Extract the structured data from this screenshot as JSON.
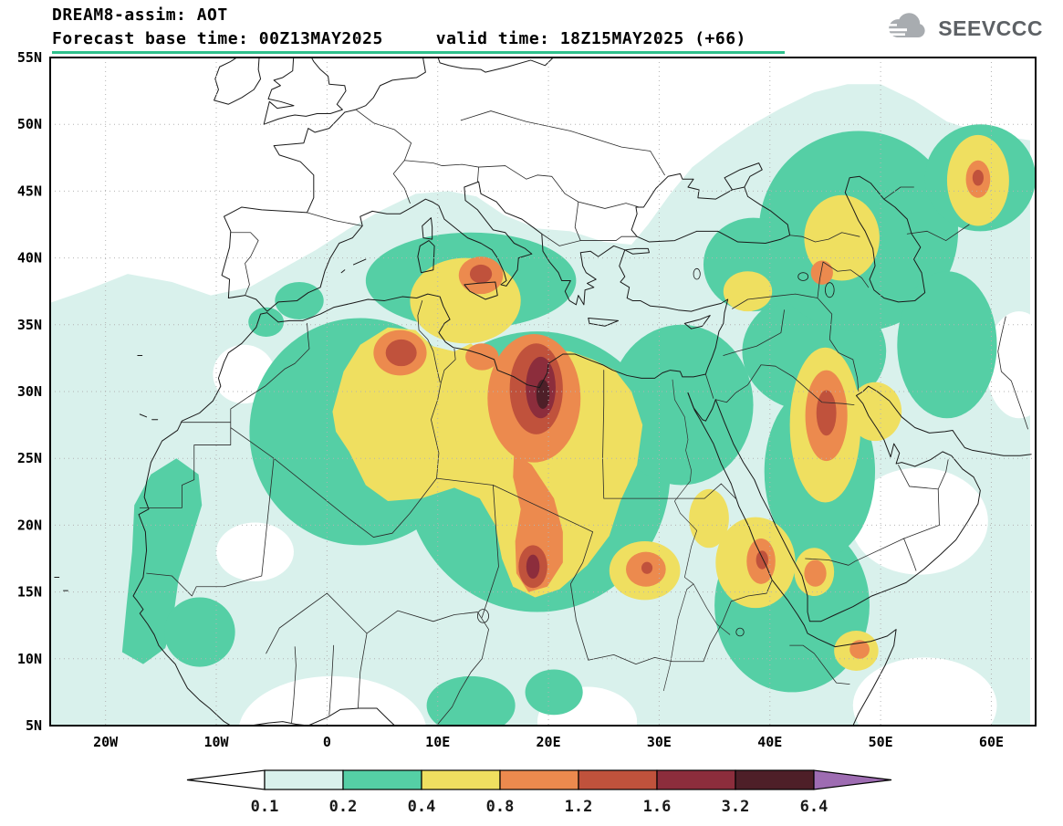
{
  "header": {
    "title": "DREAM8-assim: AOT",
    "forecast_base": "Forecast base time: 00Z13MAY2025",
    "valid_time": "valid time: 18Z15MAY2025 (+66)"
  },
  "logo": {
    "text": "SEEVCCC",
    "icon": "cloud-icon"
  },
  "map": {
    "lat_ticks": [
      {
        "label": "55N",
        "value": 55
      },
      {
        "label": "50N",
        "value": 50
      },
      {
        "label": "45N",
        "value": 45
      },
      {
        "label": "40N",
        "value": 40
      },
      {
        "label": "35N",
        "value": 35
      },
      {
        "label": "30N",
        "value": 30
      },
      {
        "label": "25N",
        "value": 25
      },
      {
        "label": "20N",
        "value": 20
      },
      {
        "label": "15N",
        "value": 15
      },
      {
        "label": "10N",
        "value": 10
      },
      {
        "label": "5N",
        "value": 5
      }
    ],
    "lon_ticks": [
      {
        "label": "20W",
        "value": -20
      },
      {
        "label": "10W",
        "value": -10
      },
      {
        "label": "0",
        "value": 0
      },
      {
        "label": "10E",
        "value": 10
      },
      {
        "label": "20E",
        "value": 20
      },
      {
        "label": "30E",
        "value": 30
      },
      {
        "label": "40E",
        "value": 40
      },
      {
        "label": "50E",
        "value": 50
      },
      {
        "label": "60E",
        "value": 60
      }
    ]
  },
  "colorbar": {
    "boundary_labels": [
      "0.1",
      "0.2",
      "0.4",
      "0.8",
      "1.2",
      "1.6",
      "3.2",
      "6.4"
    ],
    "cell_colors": [
      "#d9f1ec",
      "#55cfa5",
      "#efdf60",
      "#ec8a4e",
      "#c0523c",
      "#8c2d3c",
      "#4e1f28"
    ],
    "left_arrow_color": "#ffffff",
    "right_arrow_color": "#9e6cb2"
  },
  "chart_data": {
    "type": "heatmap",
    "subtype": "filled-contour-geographic-map",
    "model": "DREAM8-assim",
    "variable": "AOT",
    "title": "DREAM8-assim: AOT",
    "forecast_base_time": "00Z13MAY2025",
    "valid_time": "18Z15MAY2025",
    "forecast_hour": "+66",
    "lat_range": [
      5,
      55
    ],
    "lon_range": [
      -25,
      64
    ],
    "grid": true,
    "legend_position": "bottom",
    "contour_levels": [
      0.1,
      0.2,
      0.4,
      0.8,
      1.2,
      1.6,
      3.2,
      6.4
    ],
    "level_colors": {
      "0": "#ffffff",
      "0.1": "#d9f1ec",
      "0.2": "#55cfa5",
      "0.4": "#efdf60",
      "0.8": "#ec8a4e",
      "1.2": "#c0523c",
      "1.6": "#8c2d3c",
      "3.2": "#4e1f28",
      "6.4": "#9e6cb2"
    },
    "features": [
      {
        "region": "central Libya (absolute maximum)",
        "lon": 19.5,
        "lat": 30,
        "max_level": "3.2-6.4"
      },
      {
        "region": "Chad / Bodele",
        "lon": 18.5,
        "lat": 17,
        "max_level": "1.6-3.2"
      },
      {
        "region": "NE Algeria",
        "lon": 6.6,
        "lat": 33,
        "max_level": "1.2-1.6"
      },
      {
        "region": "Sicily / Tyrrhenian Sea",
        "lon": 14,
        "lat": 38.7,
        "max_level": "1.2-1.6"
      },
      {
        "region": "NE Saudi Arabia / Iraq",
        "lon": 45,
        "lat": 28.4,
        "max_level": "1.2-1.6"
      },
      {
        "region": "Sudan",
        "lon": 28.9,
        "lat": 16.7,
        "max_level": "1.2"
      },
      {
        "region": "southern Red Sea",
        "lon": 39.3,
        "lat": 17.3,
        "max_level": "1.2"
      },
      {
        "region": "Caucasus / E Anatolia",
        "lon": 44.7,
        "lat": 38.9,
        "max_level": "0.8"
      },
      {
        "region": "NE Caspian region",
        "lon": 58.8,
        "lat": 45.9,
        "max_level": "0.8-1.2"
      },
      {
        "region": "Horn of Africa",
        "lon": 48.1,
        "lat": 10.7,
        "max_level": "0.8"
      },
      {
        "region": "broad Sahara / Sahel / Middle East background",
        "lon": 20,
        "lat": 25,
        "max_level": "0.2-0.4"
      }
    ]
  }
}
